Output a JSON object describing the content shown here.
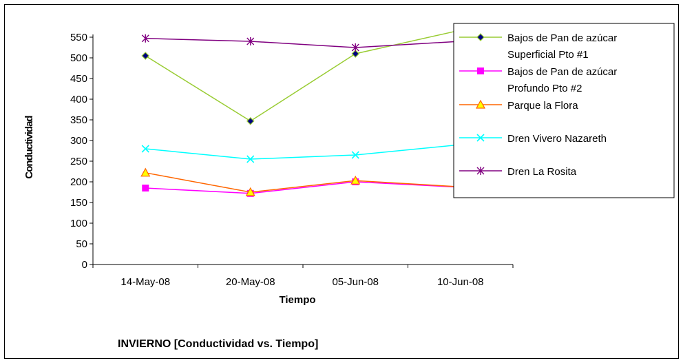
{
  "chart_data": {
    "type": "line",
    "title": "INVIERNO [Conductividad vs. Tiempo]",
    "xlabel": "Tiempo",
    "ylabel": "Conductividad",
    "categories": [
      "14-May-08",
      "20-May-08",
      "05-Jun-08",
      "10-Jun-08"
    ],
    "ylim": [
      0,
      550
    ],
    "yticks": [
      0,
      50,
      100,
      150,
      200,
      250,
      300,
      350,
      400,
      450,
      500,
      550
    ],
    "grid": false,
    "legend_position": "right",
    "series": [
      {
        "name": "Bajos de Pan de azúcar Superficial Pto #1",
        "legend_lines": [
          "Bajos de Pan de azúcar",
          "Superficial Pto #1"
        ],
        "color": "#99cc33",
        "marker": "diamond",
        "marker_fill": "#000080",
        "values": [
          505,
          347,
          510,
          567
        ]
      },
      {
        "name": "Bajos de Pan de azúcar Profundo Pto #2",
        "legend_lines": [
          "Bajos de Pan de azúcar",
          "Profundo Pto #2"
        ],
        "color": "#ff00ff",
        "marker": "square",
        "marker_fill": "#ff00ff",
        "values": [
          185,
          172,
          200,
          187
        ]
      },
      {
        "name": "Parque la Flora",
        "legend_lines": [
          "Parque la Flora"
        ],
        "color": "#ff6600",
        "marker": "triangle",
        "marker_fill": "#ffff00",
        "values": [
          222,
          175,
          203,
          188
        ]
      },
      {
        "name": "Dren Vivero Nazareth",
        "legend_lines": [
          "Dren Vivero Nazareth"
        ],
        "color": "#00ffff",
        "marker": "x",
        "marker_fill": "none",
        "values": [
          280,
          255,
          265,
          290
        ]
      },
      {
        "name": "Dren La Rosita",
        "legend_lines": [
          "Dren La Rosita"
        ],
        "color": "#800080",
        "marker": "star",
        "marker_fill": "none",
        "values": [
          547,
          540,
          525,
          540
        ]
      }
    ]
  }
}
